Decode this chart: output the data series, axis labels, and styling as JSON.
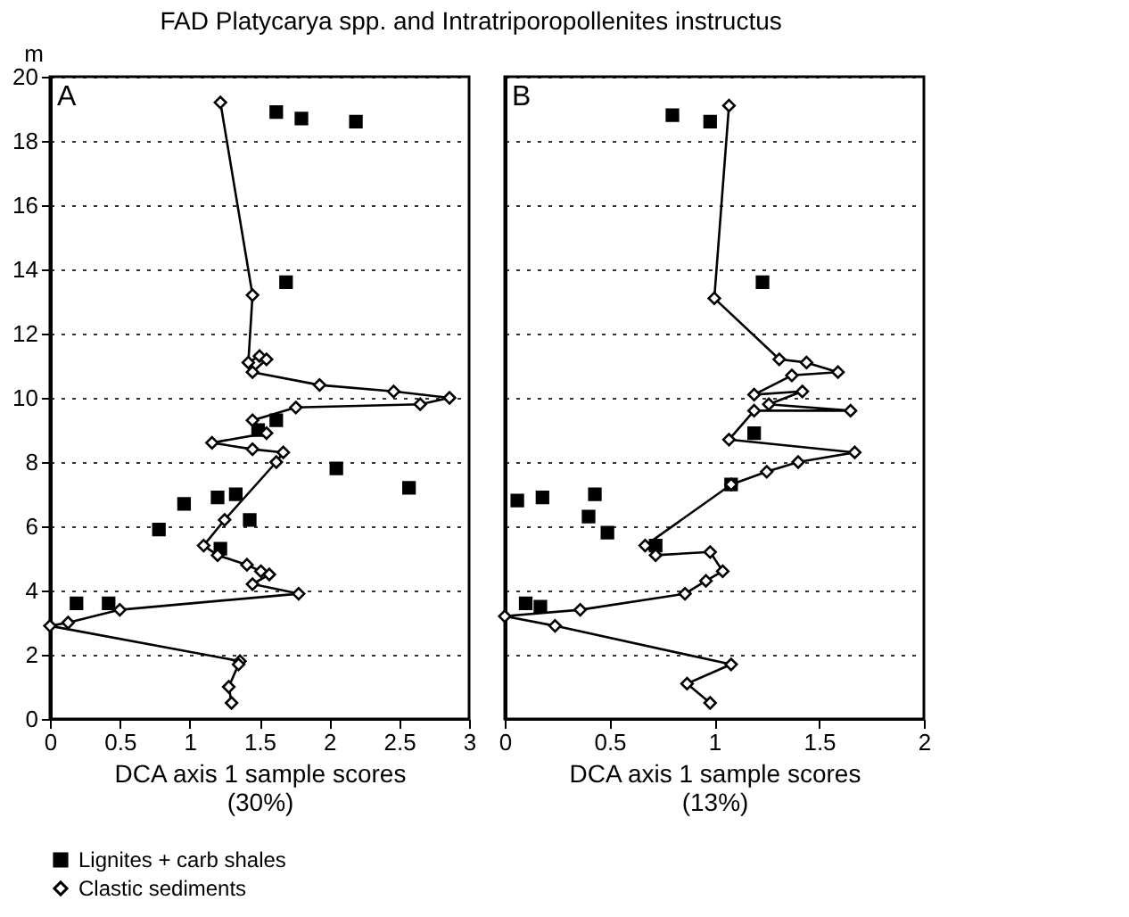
{
  "chart_data": [
    {
      "type": "line",
      "title": "FAD Platycarya spp. and Intratriporopollenites instructus",
      "xlabel": "DCA axis 1 sample scores\n(30%)",
      "ylabel": "m",
      "annotations": [
        "A"
      ],
      "xlim": [
        0,
        3
      ],
      "xticks": [
        0,
        0.5,
        1,
        1.5,
        2,
        2.5,
        3
      ],
      "ylim": [
        0,
        20
      ],
      "yticks": [
        0,
        2,
        4,
        6,
        8,
        10,
        12,
        14,
        16,
        18,
        20
      ],
      "grid": "y",
      "legend": false,
      "series": [
        {
          "type": "scatter",
          "marker": "square",
          "color": "#000000",
          "x": [
            1.62,
            1.8,
            2.19,
            1.69,
            2.05,
            2.57,
            0.96,
            1.2,
            1.33,
            1.43,
            0.78,
            1.22,
            1.49,
            1.62,
            0.19,
            0.42
          ],
          "values": [
            18.9,
            18.7,
            18.6,
            13.6,
            7.8,
            7.2,
            6.7,
            6.9,
            7.0,
            6.2,
            5.9,
            5.3,
            9.0,
            9.3,
            3.6,
            3.6
          ]
        },
        {
          "marker": "diamond",
          "color": "#000000",
          "x": [
            1.22,
            1.45,
            1.42,
            1.5,
            1.55,
            1.45,
            1.93,
            2.46,
            2.86,
            2.65,
            1.76,
            1.45,
            1.55,
            1.16,
            1.45,
            1.67,
            1.62,
            1.25,
            1.1,
            1.2,
            1.41,
            1.51,
            1.57,
            1.45,
            1.78,
            0.5,
            0.13,
            0.0,
            1.36,
            1.35,
            1.28,
            1.3
          ],
          "values": [
            19.2,
            13.2,
            11.1,
            11.3,
            11.2,
            10.8,
            10.4,
            10.2,
            10.0,
            9.8,
            9.7,
            9.3,
            8.9,
            8.6,
            8.4,
            8.3,
            8.0,
            6.2,
            5.4,
            5.1,
            4.8,
            4.6,
            4.5,
            4.2,
            3.9,
            3.4,
            3.0,
            2.9,
            1.8,
            1.7,
            1.0,
            0.5
          ]
        }
      ]
    },
    {
      "type": "line",
      "xlabel": "DCA axis 1 sample scores\n(13%)",
      "annotations": [
        "B"
      ],
      "xlim": [
        0,
        2
      ],
      "xticks": [
        0,
        0.5,
        1,
        1.5,
        2
      ],
      "ylim": [
        0,
        20
      ],
      "yticks": [
        0,
        2,
        4,
        6,
        8,
        10,
        12,
        14,
        16,
        18,
        20
      ],
      "grid": "y",
      "tick_labels": "x",
      "legend": "bottom",
      "series": [
        {
          "type": "scatter",
          "name": "Lignites + carb shales",
          "marker": "square",
          "color": "#000000",
          "x": [
            0.8,
            0.98,
            1.23,
            1.08,
            0.18,
            0.06,
            0.43,
            0.4,
            0.49,
            0.72,
            1.19,
            0.1,
            0.17
          ],
          "values": [
            18.8,
            18.6,
            13.6,
            7.3,
            6.9,
            6.8,
            7.0,
            6.3,
            5.8,
            5.4,
            8.9,
            3.6,
            3.5
          ]
        },
        {
          "name": "Clastic sediments",
          "marker": "diamond",
          "color": "#000000",
          "x": [
            1.07,
            1.0,
            1.31,
            1.44,
            1.59,
            1.37,
            1.19,
            1.42,
            1.26,
            1.65,
            1.19,
            1.07,
            1.67,
            1.4,
            1.25,
            1.08,
            0.67,
            0.72,
            0.98,
            1.04,
            0.96,
            0.86,
            0.36,
            0.0,
            0.24,
            1.08,
            0.87,
            0.98
          ],
          "values": [
            19.1,
            13.1,
            11.2,
            11.1,
            10.8,
            10.7,
            10.1,
            10.2,
            9.8,
            9.6,
            9.6,
            8.7,
            8.3,
            8.0,
            7.7,
            7.3,
            5.4,
            5.1,
            5.2,
            4.6,
            4.3,
            3.9,
            3.4,
            3.2,
            2.9,
            1.7,
            1.1,
            0.5
          ]
        }
      ]
    }
  ]
}
